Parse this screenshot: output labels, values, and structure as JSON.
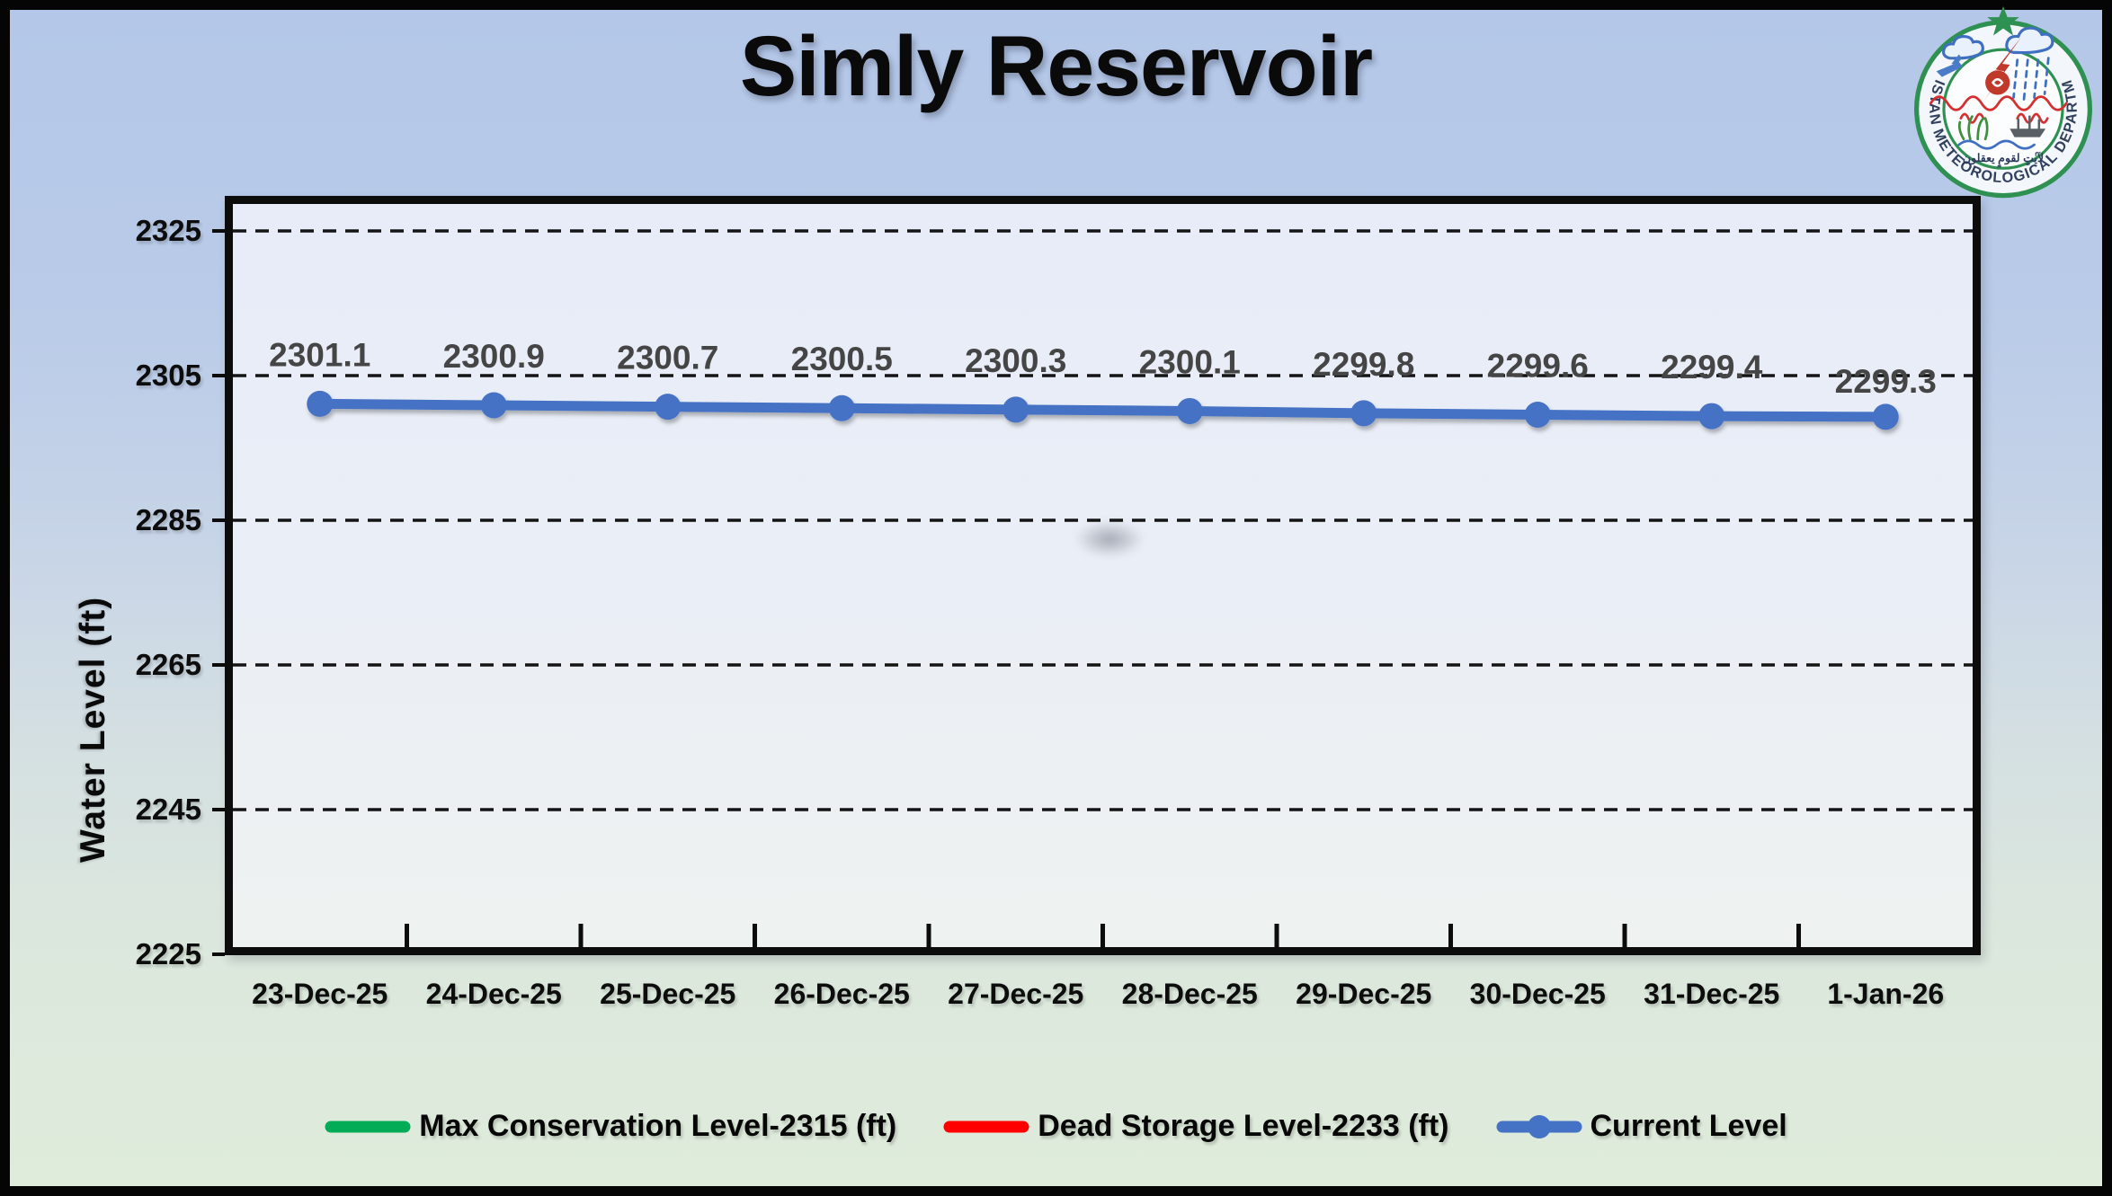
{
  "title": "Simly Reservoir",
  "logo": {
    "ring_text": "PAKISTAN METEOROLOGICAL DEPARTMENT",
    "inscription": "لآيٰتٍ لقومٍ يعقلون"
  },
  "chart_data": {
    "type": "line",
    "title": "Simly Reservoir",
    "xlabel": "",
    "ylabel": "Water Level (ft)",
    "ylim": [
      2225,
      2330
    ],
    "yticks": [
      2325,
      2305,
      2285,
      2265,
      2245,
      2225
    ],
    "grid": "horizontal-dashed",
    "legend_position": "bottom",
    "categories": [
      "23-Dec-25",
      "24-Dec-25",
      "25-Dec-25",
      "26-Dec-25",
      "27-Dec-25",
      "28-Dec-25",
      "29-Dec-25",
      "30-Dec-25",
      "31-Dec-25",
      "1-Jan-26"
    ],
    "series": [
      {
        "name": "Max Conservation Level-2315 (ft)",
        "kind": "constant-line",
        "value": 2315,
        "color": "#02ab55",
        "marker": false
      },
      {
        "name": "Dead Storage Level-2233 (ft)",
        "kind": "constant-line",
        "value": 2233,
        "color": "#fe0000",
        "marker": false
      },
      {
        "name": "Current Level",
        "kind": "line",
        "color": "#4472c4",
        "marker": true,
        "values": [
          2301.1,
          2300.9,
          2300.7,
          2300.5,
          2300.3,
          2300.1,
          2299.8,
          2299.6,
          2299.4,
          2299.3
        ],
        "data_labels": [
          "2301.1",
          "2300.9",
          "2300.7",
          "2300.5",
          "2300.3",
          "2300.1",
          "2299.8",
          "2299.6",
          "2299.4",
          "2299.3"
        ],
        "data_label_color": "#454545"
      }
    ]
  },
  "colors": {
    "background_top": "#b4c7e8",
    "background_bottom": "#dfecdb",
    "plot_fill": "#e9eef7",
    "gridline": "#141414",
    "axis_frame": "#0c0c0c"
  }
}
